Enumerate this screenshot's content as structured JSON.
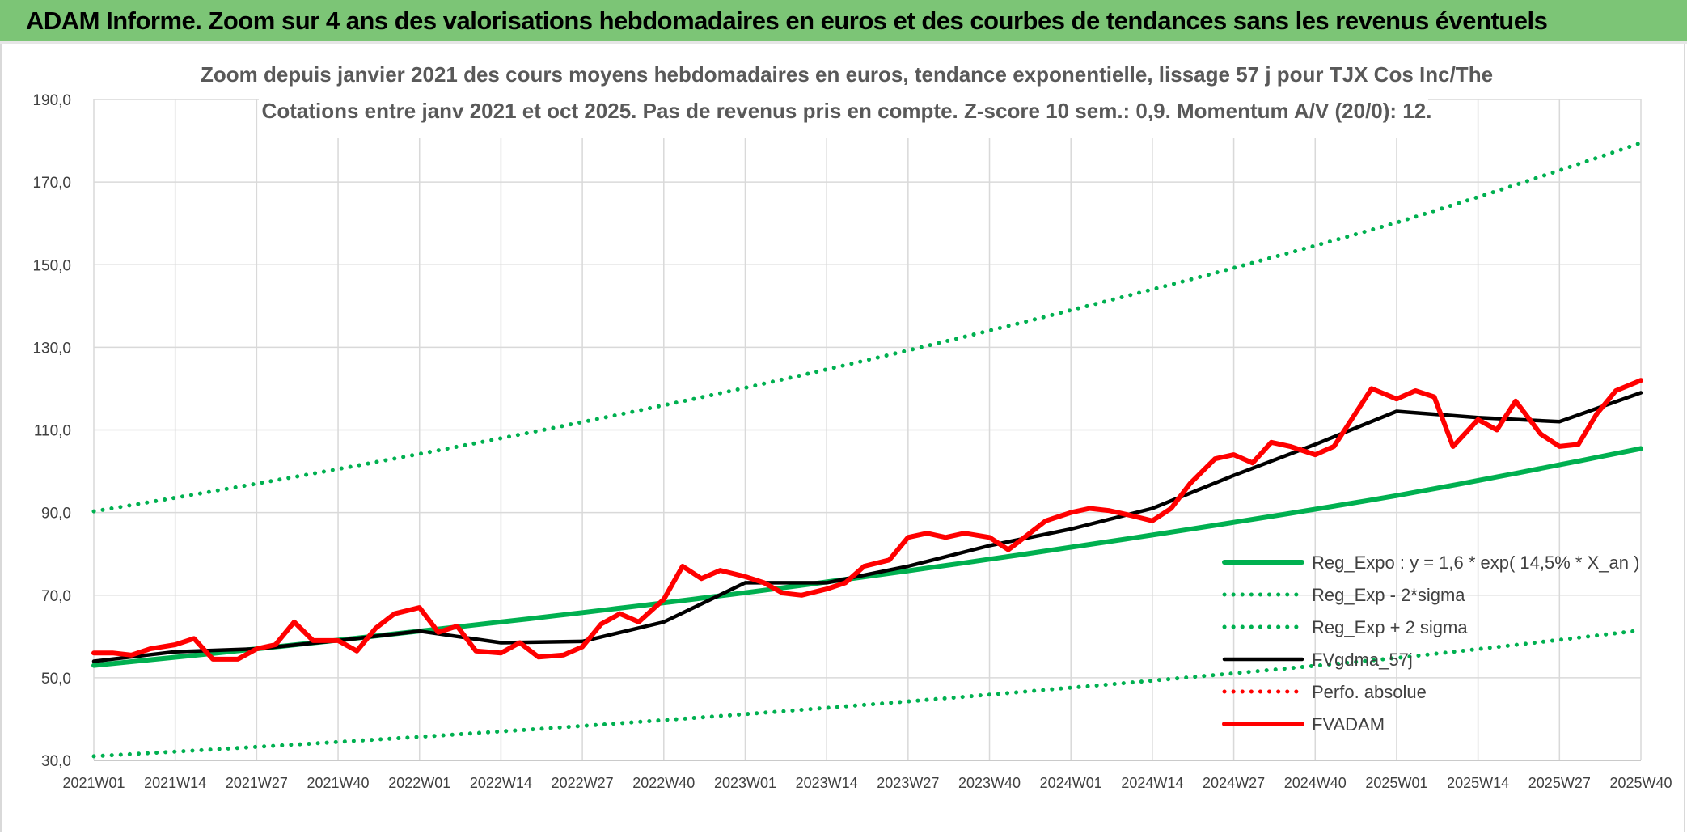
{
  "banner": {
    "title": "ADAM Informe. Zoom sur 4 ans des valorisations hebdomadaires en euros et des courbes de tendances sans les revenus éventuels"
  },
  "chart_data": {
    "type": "line",
    "title": "Zoom depuis janvier 2021 des cours moyens hebdomadaires en euros, tendance exponentielle, lissage 57 j pour TJX Cos Inc/The",
    "subtitle": "Cotations entre janv 2021 et oct 2025. Pas de revenus pris en compte. Z-score 10 sem.: 0,9. Momentum A/V (20/0): 12.",
    "ylim": [
      30,
      190
    ],
    "y_ticks": [
      "30,0",
      "50,0",
      "70,0",
      "90,0",
      "110,0",
      "130,0",
      "150,0",
      "170,0",
      "190,0"
    ],
    "x_ticks": [
      "2021W01",
      "2021W14",
      "2021W27",
      "2021W40",
      "2022W01",
      "2022W14",
      "2022W27",
      "2022W40",
      "2023W01",
      "2023W14",
      "2023W27",
      "2023W40",
      "2024W01",
      "2024W14",
      "2024W27",
      "2024W40",
      "2025W01",
      "2025W14",
      "2025W27",
      "2025W40"
    ],
    "grid": true,
    "legend_position": "bottom-right",
    "series": [
      {
        "name": "Reg_Expo : y = 1,6 * exp( 14,5% *  X_an )",
        "color": "#00b050",
        "style": "solid",
        "x": [
          "2021W01",
          "2022W01",
          "2023W01",
          "2024W01",
          "2025W01",
          "2025W40"
        ],
        "values": [
          53.0,
          61.3,
          70.6,
          81.6,
          94.1,
          105.5
        ]
      },
      {
        "name": "Reg_Exp - 2*sigma",
        "color": "#00b050",
        "style": "dotted",
        "x": [
          "2021W01",
          "2022W01",
          "2023W01",
          "2024W01",
          "2025W01",
          "2025W40"
        ],
        "values": [
          31.0,
          35.7,
          41.2,
          47.6,
          54.8,
          61.5
        ]
      },
      {
        "name": "Reg_Exp + 2 sigma",
        "color": "#00b050",
        "style": "dotted",
        "x": [
          "2021W01",
          "2022W01",
          "2023W01",
          "2024W01",
          "2025W01",
          "2025W40"
        ],
        "values": [
          90.3,
          104.2,
          120.2,
          139.0,
          160.2,
          179.5
        ]
      },
      {
        "name": "FVgdma_57j",
        "color": "#000000",
        "style": "solid",
        "x": [
          "2021W01",
          "2021W14",
          "2021W27",
          "2021W40",
          "2022W01",
          "2022W14",
          "2022W27",
          "2022W40",
          "2023W01",
          "2023W14",
          "2023W27",
          "2023W40",
          "2024W01",
          "2024W14",
          "2024W27",
          "2024W40",
          "2025W01",
          "2025W14",
          "2025W27",
          "2025W40"
        ],
        "values": [
          54.0,
          56.3,
          57.0,
          59.0,
          61.3,
          58.5,
          58.8,
          63.5,
          73.0,
          73.0,
          77.0,
          82.0,
          86.0,
          91.0,
          99.0,
          106.5,
          114.5,
          113.0,
          112.0,
          119.0
        ]
      },
      {
        "name": "Perfo. absolue",
        "color": "#ff0000",
        "style": "dotted",
        "x": [],
        "values": []
      },
      {
        "name": "FVADAM",
        "color": "#ff0000",
        "style": "solid",
        "x": [
          "2021W01",
          "2021W04",
          "2021W07",
          "2021W10",
          "2021W14",
          "2021W17",
          "2021W20",
          "2021W24",
          "2021W27",
          "2021W30",
          "2021W33",
          "2021W36",
          "2021W40",
          "2021W43",
          "2021W46",
          "2021W49",
          "2022W01",
          "2022W04",
          "2022W07",
          "2022W10",
          "2022W14",
          "2022W17",
          "2022W20",
          "2022W24",
          "2022W27",
          "2022W30",
          "2022W33",
          "2022W36",
          "2022W40",
          "2022W43",
          "2022W46",
          "2022W49",
          "2023W01",
          "2023W04",
          "2023W07",
          "2023W10",
          "2023W14",
          "2023W17",
          "2023W20",
          "2023W24",
          "2023W27",
          "2023W30",
          "2023W33",
          "2023W36",
          "2023W40",
          "2023W43",
          "2023W46",
          "2023W49",
          "2024W01",
          "2024W04",
          "2024W07",
          "2024W10",
          "2024W14",
          "2024W17",
          "2024W20",
          "2024W24",
          "2024W27",
          "2024W30",
          "2024W33",
          "2024W36",
          "2024W40",
          "2024W43",
          "2024W46",
          "2024W49",
          "2025W01",
          "2025W04",
          "2025W07",
          "2025W10",
          "2025W14",
          "2025W17",
          "2025W20",
          "2025W24",
          "2025W27",
          "2025W30",
          "2025W33",
          "2025W36",
          "2025W40"
        ],
        "values": [
          56.0,
          56.0,
          55.5,
          57.0,
          58.0,
          59.5,
          54.5,
          54.5,
          57.0,
          58.0,
          63.5,
          59.0,
          59.0,
          56.5,
          62.0,
          65.5,
          67.0,
          61.0,
          62.5,
          56.5,
          56.0,
          58.5,
          55.0,
          55.5,
          57.5,
          63.0,
          65.5,
          63.5,
          69.0,
          77.0,
          74.0,
          76.0,
          74.5,
          73.0,
          70.5,
          70.0,
          71.5,
          73.0,
          77.0,
          78.5,
          84.0,
          85.0,
          84.0,
          85.0,
          84.0,
          81.0,
          84.5,
          88.0,
          90.0,
          91.0,
          90.5,
          89.5,
          88.0,
          91.0,
          97.0,
          103.0,
          104.0,
          102.0,
          107.0,
          106.0,
          104.0,
          106.0,
          113.0,
          120.0,
          117.5,
          119.5,
          118.0,
          106.0,
          112.5,
          110.0,
          117.0,
          109.0,
          106.0,
          106.5,
          114.0,
          119.5,
          122.0
        ]
      }
    ]
  }
}
